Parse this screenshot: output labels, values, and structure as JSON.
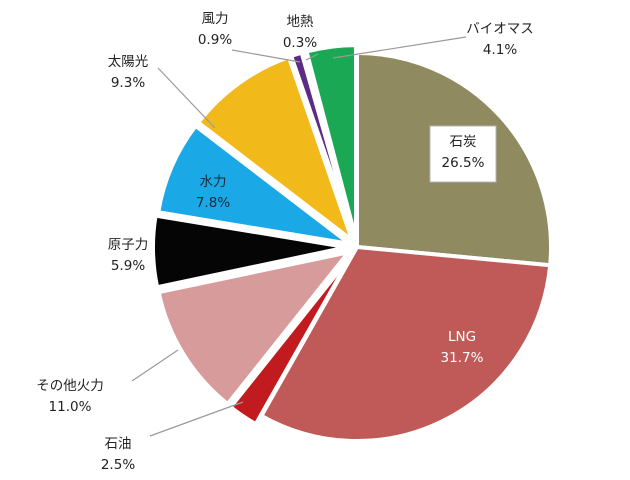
{
  "chart_data": {
    "type": "pie",
    "title": "",
    "slices": [
      {
        "label": "石炭",
        "value": 26.5,
        "value_label": "26.5%",
        "color": "#8f8a5f",
        "label_position": "inside-box"
      },
      {
        "label": "LNG",
        "value": 31.7,
        "value_label": "31.7%",
        "color": "#c05a58",
        "label_position": "inside"
      },
      {
        "label": "石油",
        "value": 2.5,
        "value_label": "2.5%",
        "color": "#c11b1f",
        "label_position": "outside"
      },
      {
        "label": "その他火力",
        "value": 11.0,
        "value_label": "11.0%",
        "color": "#d89b9b",
        "label_position": "outside"
      },
      {
        "label": "原子力",
        "value": 5.9,
        "value_label": "5.9%",
        "color": "#050505",
        "label_position": "outside"
      },
      {
        "label": "水力",
        "value": 7.8,
        "value_label": "7.8%",
        "color": "#1aa9e6",
        "label_position": "inside"
      },
      {
        "label": "太陽光",
        "value": 9.3,
        "value_label": "9.3%",
        "color": "#f2b91a",
        "label_position": "outside"
      },
      {
        "label": "風力",
        "value": 0.9,
        "value_label": "0.9%",
        "color": "#5b2c86",
        "label_position": "outside"
      },
      {
        "label": "地熱",
        "value": 0.3,
        "value_label": "0.3%",
        "color": "#1e7a3a",
        "label_position": "outside"
      },
      {
        "label": "バイオマス",
        "value": 4.1,
        "value_label": "4.1%",
        "color": "#1aa855",
        "label_position": "outside"
      }
    ],
    "start_angle_deg": 0,
    "direction": "clockwise",
    "legend": "none"
  }
}
